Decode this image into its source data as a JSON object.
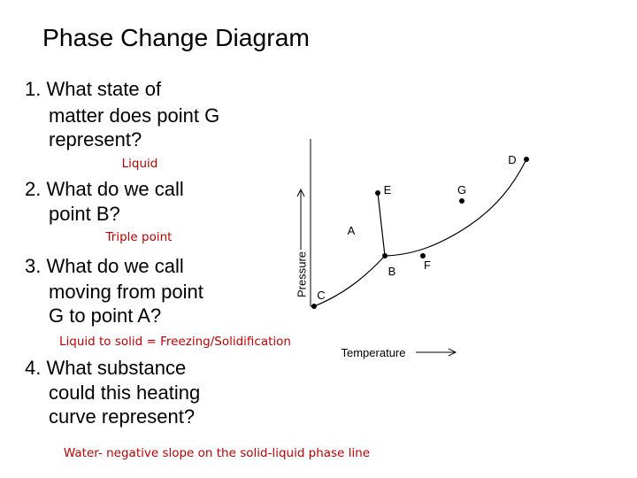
{
  "header": {
    "title": "Phase Change Diagram"
  },
  "questions": [
    {
      "lines": [
        "1. What state of",
        "matter does point G",
        "represent?"
      ],
      "answer": "Liquid"
    },
    {
      "lines": [
        "2. What do we call",
        "point B?"
      ],
      "answer": "Triple point"
    },
    {
      "lines": [
        "3. What do we call",
        "moving from point",
        "G to point A?"
      ],
      "answer": "Liquid to solid = Freezing/Solidification"
    },
    {
      "lines": [
        "4. What substance",
        "could this heating",
        "curve represent?"
      ],
      "answer": "Water- negative slope on the solid-liquid phase line"
    }
  ],
  "diagram": {
    "y_axis_label": "Pressure",
    "x_axis_label": "Temperature",
    "points": [
      "A",
      "B",
      "C",
      "D",
      "E",
      "F",
      "G"
    ]
  }
}
